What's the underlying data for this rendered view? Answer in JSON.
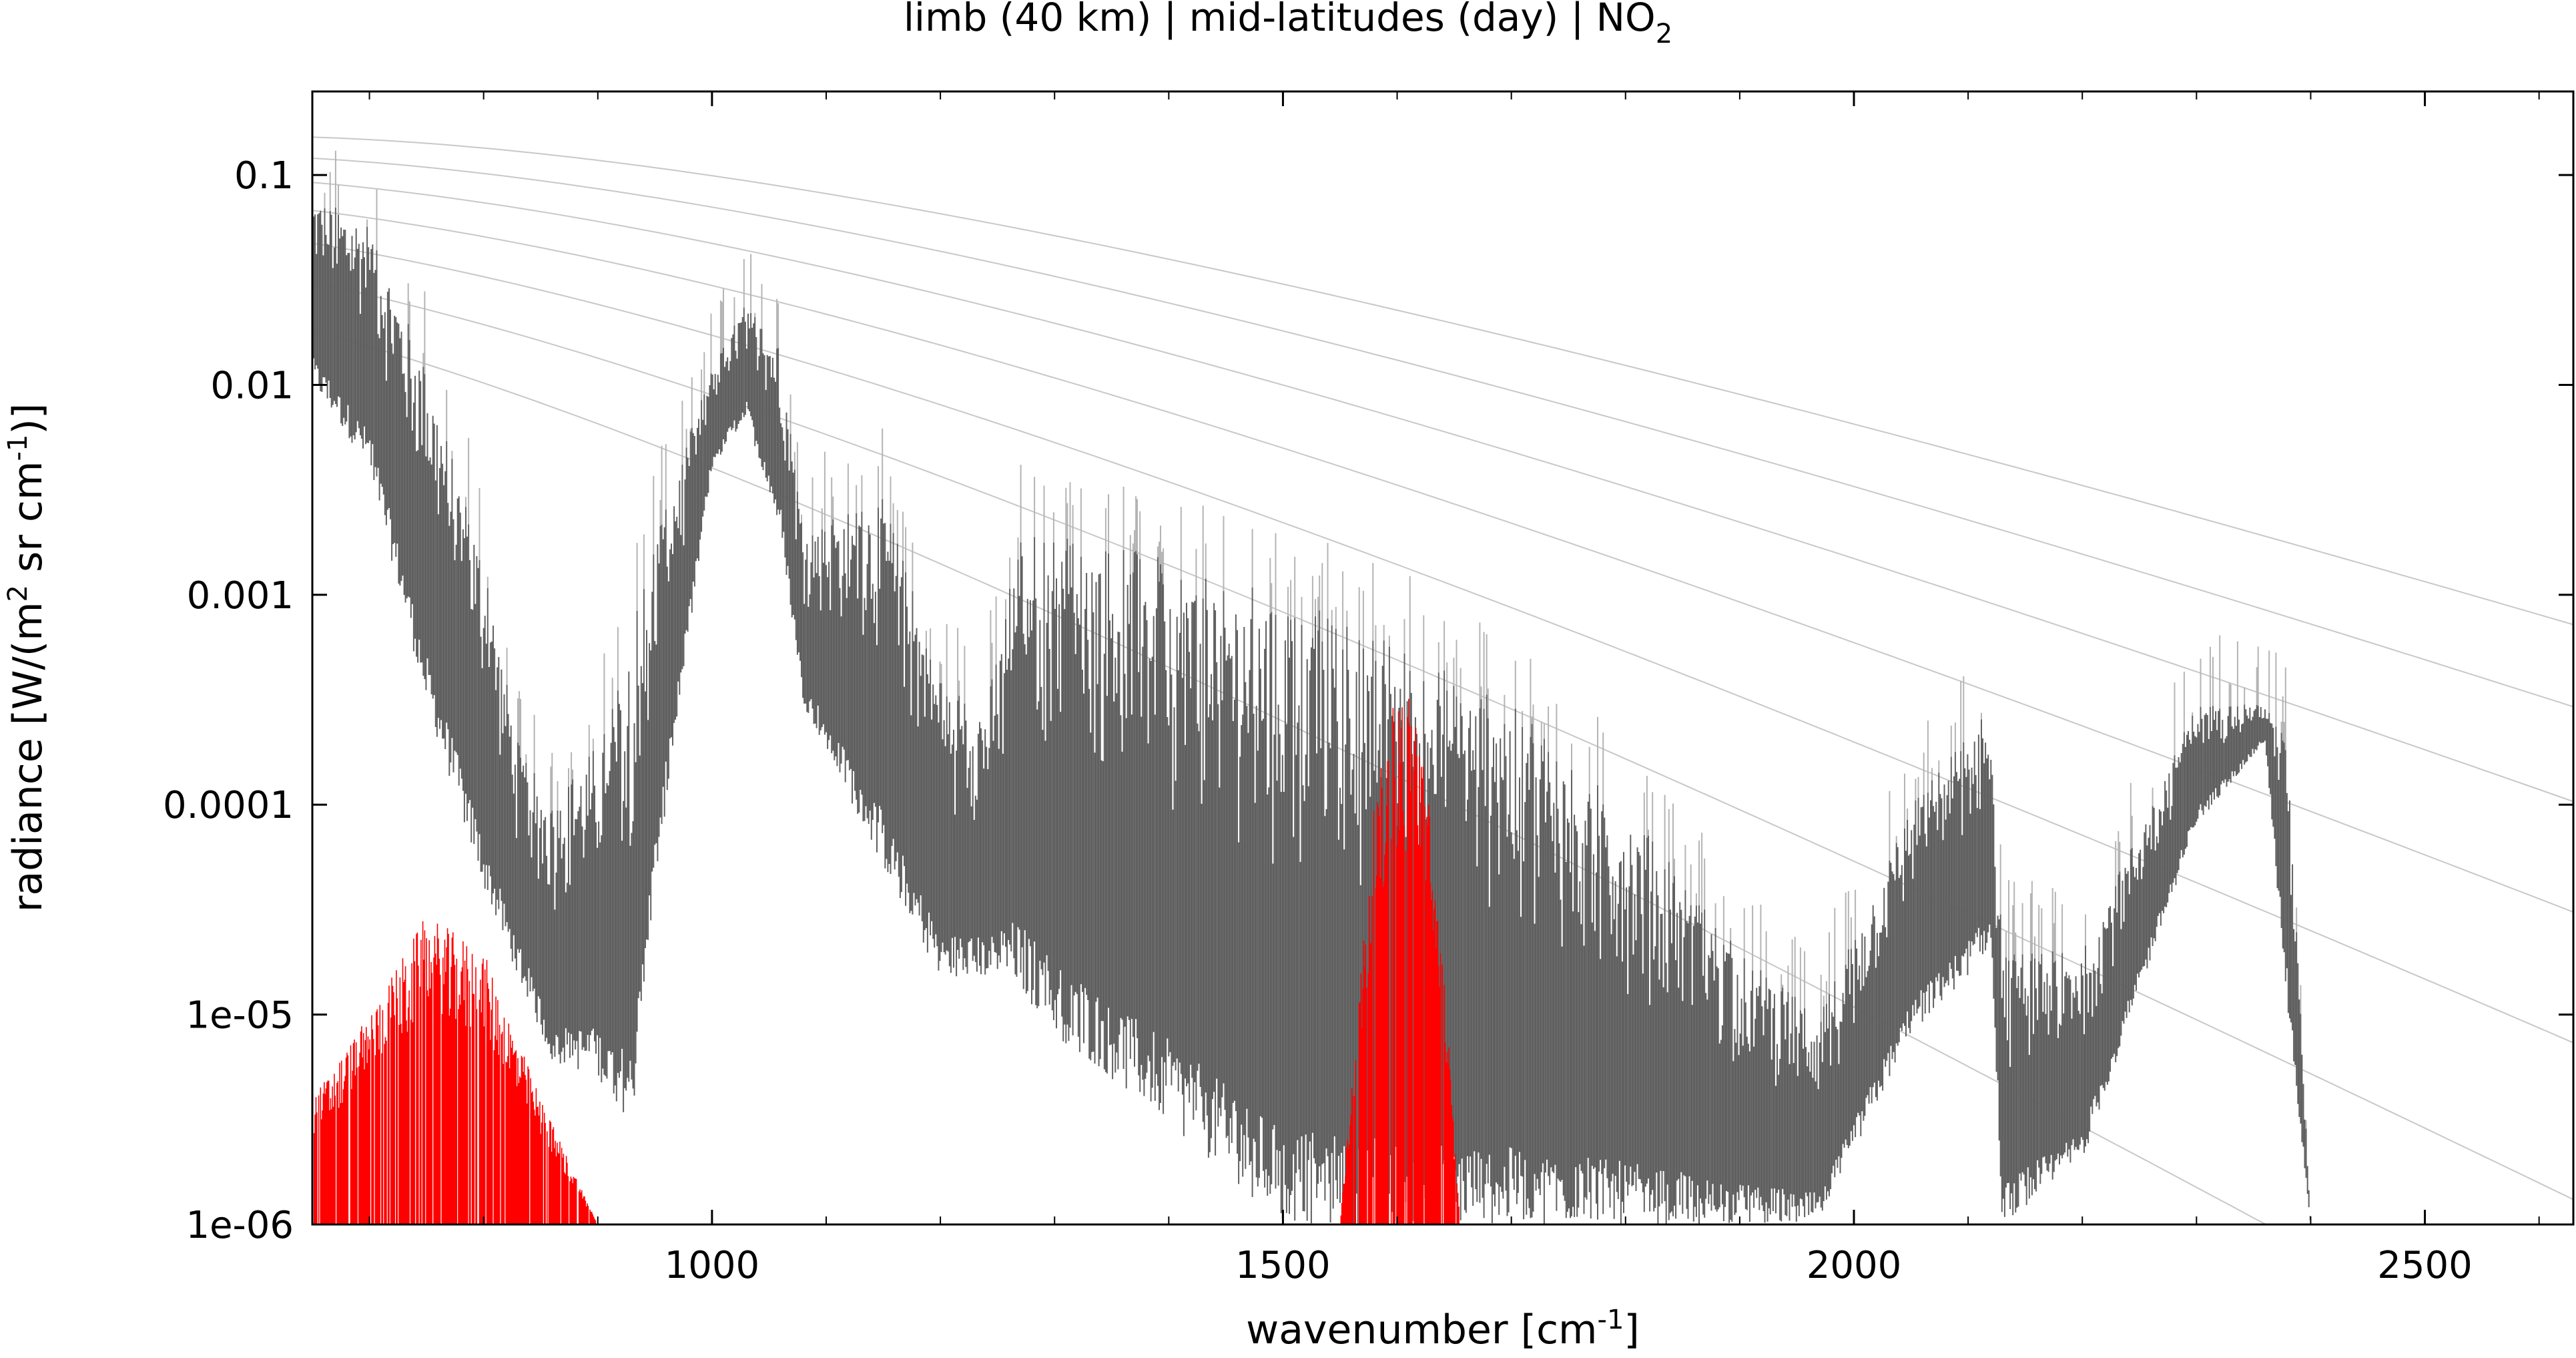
{
  "chart_data": {
    "type": "line",
    "title": "limb (40 km) | mid-latitudes (day) | NO",
    "title_subscript": "2",
    "xlabel": "wavenumber [cm",
    "xlabel_sup": "-1",
    "xlabel_end": "]",
    "ylabel": "radiance [W/(m",
    "ylabel_sup1": "2",
    "ylabel_mid": " sr cm",
    "ylabel_sup2": "-1",
    "ylabel_end": ")]",
    "xlim": [
      650,
      2630
    ],
    "ylim": [
      1e-06,
      0.25
    ],
    "yscale": "log",
    "x_ticks": [
      1000,
      1500,
      2000,
      2500
    ],
    "x_tick_labels": [
      "1000",
      "1500",
      "2000",
      "2500"
    ],
    "y_ticks": [
      0.1,
      0.01,
      0.001,
      0.0001,
      1e-05,
      1e-06
    ],
    "y_tick_labels": [
      "0.1",
      "0.01",
      "0.001",
      "0.0001",
      "1e-05",
      "1e-06"
    ],
    "grid": false,
    "legend": "none",
    "colors": {
      "total_spectrum": "#606060",
      "total_spectrum_light": "#b4b4b4",
      "no2_contribution": "#ff0000",
      "planck_curves": "#c8c8c8"
    },
    "planck_temperatures": [
      180,
      200,
      220,
      240,
      260,
      280,
      300
    ],
    "series": [
      {
        "color": "#606060",
        "envelope_upper": [
          [
            650,
            0.08
          ],
          [
            700,
            0.06
          ],
          [
            750,
            0.012
          ],
          [
            800,
            0.0015
          ],
          [
            830,
            0.0002
          ],
          [
            860,
            0.0001
          ],
          [
            900,
            0.0002
          ],
          [
            920,
            0.0004
          ],
          [
            950,
            0.002
          ],
          [
            1000,
            0.012
          ],
          [
            1030,
            0.025
          ],
          [
            1060,
            0.015
          ],
          [
            1080,
            0.002
          ],
          [
            1150,
            0.003
          ],
          [
            1200,
            0.0004
          ],
          [
            1240,
            0.0003
          ],
          [
            1270,
            0.002
          ],
          [
            1300,
            0.002
          ],
          [
            1400,
            0.0015
          ],
          [
            1500,
            0.001
          ],
          [
            1600,
            0.0006
          ],
          [
            1700,
            0.0003
          ],
          [
            1800,
            0.0001
          ],
          [
            1900,
            2e-05
          ],
          [
            1970,
            1e-05
          ],
          [
            2050,
            0.0001
          ],
          [
            2120,
            0.0003
          ],
          [
            2130,
            2e-05
          ],
          [
            2200,
            2e-05
          ],
          [
            2300,
            0.0003
          ],
          [
            2360,
            0.0003
          ],
          [
            2380,
            0.0002
          ],
          [
            2400,
            1e-06
          ]
        ],
        "envelope_lower": [
          [
            650,
            0.01
          ],
          [
            700,
            0.004
          ],
          [
            750,
            0.0003
          ],
          [
            800,
            4e-05
          ],
          [
            830,
            1.5e-05
          ],
          [
            860,
            6e-06
          ],
          [
            900,
            5e-06
          ],
          [
            930,
            3e-06
          ],
          [
            950,
            4e-05
          ],
          [
            1000,
            0.004
          ],
          [
            1030,
            0.007
          ],
          [
            1060,
            0.002
          ],
          [
            1080,
            0.0003
          ],
          [
            1150,
            5e-05
          ],
          [
            1200,
            1.5e-05
          ],
          [
            1260,
            1.5e-05
          ],
          [
            1300,
            8e-06
          ],
          [
            1400,
            3e-06
          ],
          [
            1500,
            1e-06
          ],
          [
            1600,
            1e-06
          ],
          [
            1700,
            1e-06
          ],
          [
            1800,
            1e-06
          ],
          [
            1900,
            1e-06
          ],
          [
            1970,
            1e-06
          ],
          [
            2050,
            8e-06
          ],
          [
            2120,
            2e-05
          ],
          [
            2130,
            1e-06
          ],
          [
            2200,
            2e-06
          ],
          [
            2300,
            8e-05
          ],
          [
            2360,
            0.0002
          ],
          [
            2380,
            1e-05
          ],
          [
            2400,
            1e-06
          ]
        ]
      },
      {
        "color": "#ff0000",
        "envelope_upper": [
          [
            650,
            4e-06
          ],
          [
            700,
            1e-05
          ],
          [
            750,
            3e-05
          ],
          [
            800,
            2e-05
          ],
          [
            850,
            4e-06
          ],
          [
            900,
            1e-06
          ],
          [
            1550,
            1e-06
          ],
          [
            1580,
            0.0001
          ],
          [
            1600,
            0.0004
          ],
          [
            1620,
            0.0003
          ],
          [
            1640,
            2e-05
          ],
          [
            1655,
            1e-06
          ]
        ],
        "envelope_lower": [
          [
            650,
            1e-06
          ],
          [
            900,
            1e-06
          ],
          [
            1550,
            1e-06
          ],
          [
            1655,
            1e-06
          ]
        ]
      }
    ]
  }
}
